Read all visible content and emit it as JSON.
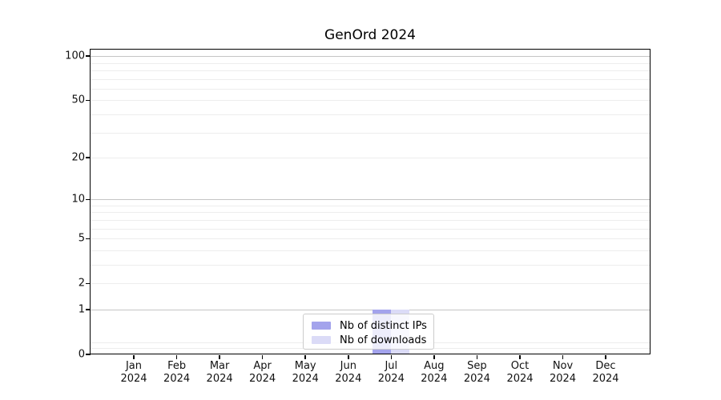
{
  "page": {
    "background": "#ffffff"
  },
  "chart_data": {
    "type": "bar",
    "title": "GenOrd 2024",
    "categories": [
      "Jan 2024",
      "Feb 2024",
      "Mar 2024",
      "Apr 2024",
      "May 2024",
      "Jun 2024",
      "Jul 2024",
      "Aug 2024",
      "Sep 2024",
      "Oct 2024",
      "Nov 2024",
      "Dec 2024"
    ],
    "series": [
      {
        "name": "Nb of distinct IPs",
        "color": "#a3a3ec",
        "values": [
          0,
          0,
          0,
          0,
          0,
          0,
          1,
          0,
          0,
          0,
          0,
          0
        ]
      },
      {
        "name": "Nb of downloads",
        "color": "#dbdbf7",
        "values": [
          0,
          0,
          0,
          0,
          0,
          0,
          1,
          0,
          0,
          0,
          0,
          0
        ]
      }
    ],
    "xlabel": "",
    "ylabel": "",
    "y_scale": "log1p",
    "ylim": [
      0,
      110.6
    ],
    "y_ticks": [
      0,
      1,
      2,
      5,
      10,
      20,
      50,
      100
    ],
    "gridlines": {
      "dark_values": [
        1,
        10,
        100
      ],
      "light_values": [
        0.1,
        0.2,
        2,
        3,
        4,
        5,
        6,
        7,
        8,
        9,
        20,
        30,
        40,
        50,
        60,
        70,
        80,
        90
      ],
      "dark_color": "#c4c4c4",
      "light_color": "#ededed"
    },
    "grid": true,
    "legend_position": "lower center",
    "axis_color": "#000000"
  }
}
